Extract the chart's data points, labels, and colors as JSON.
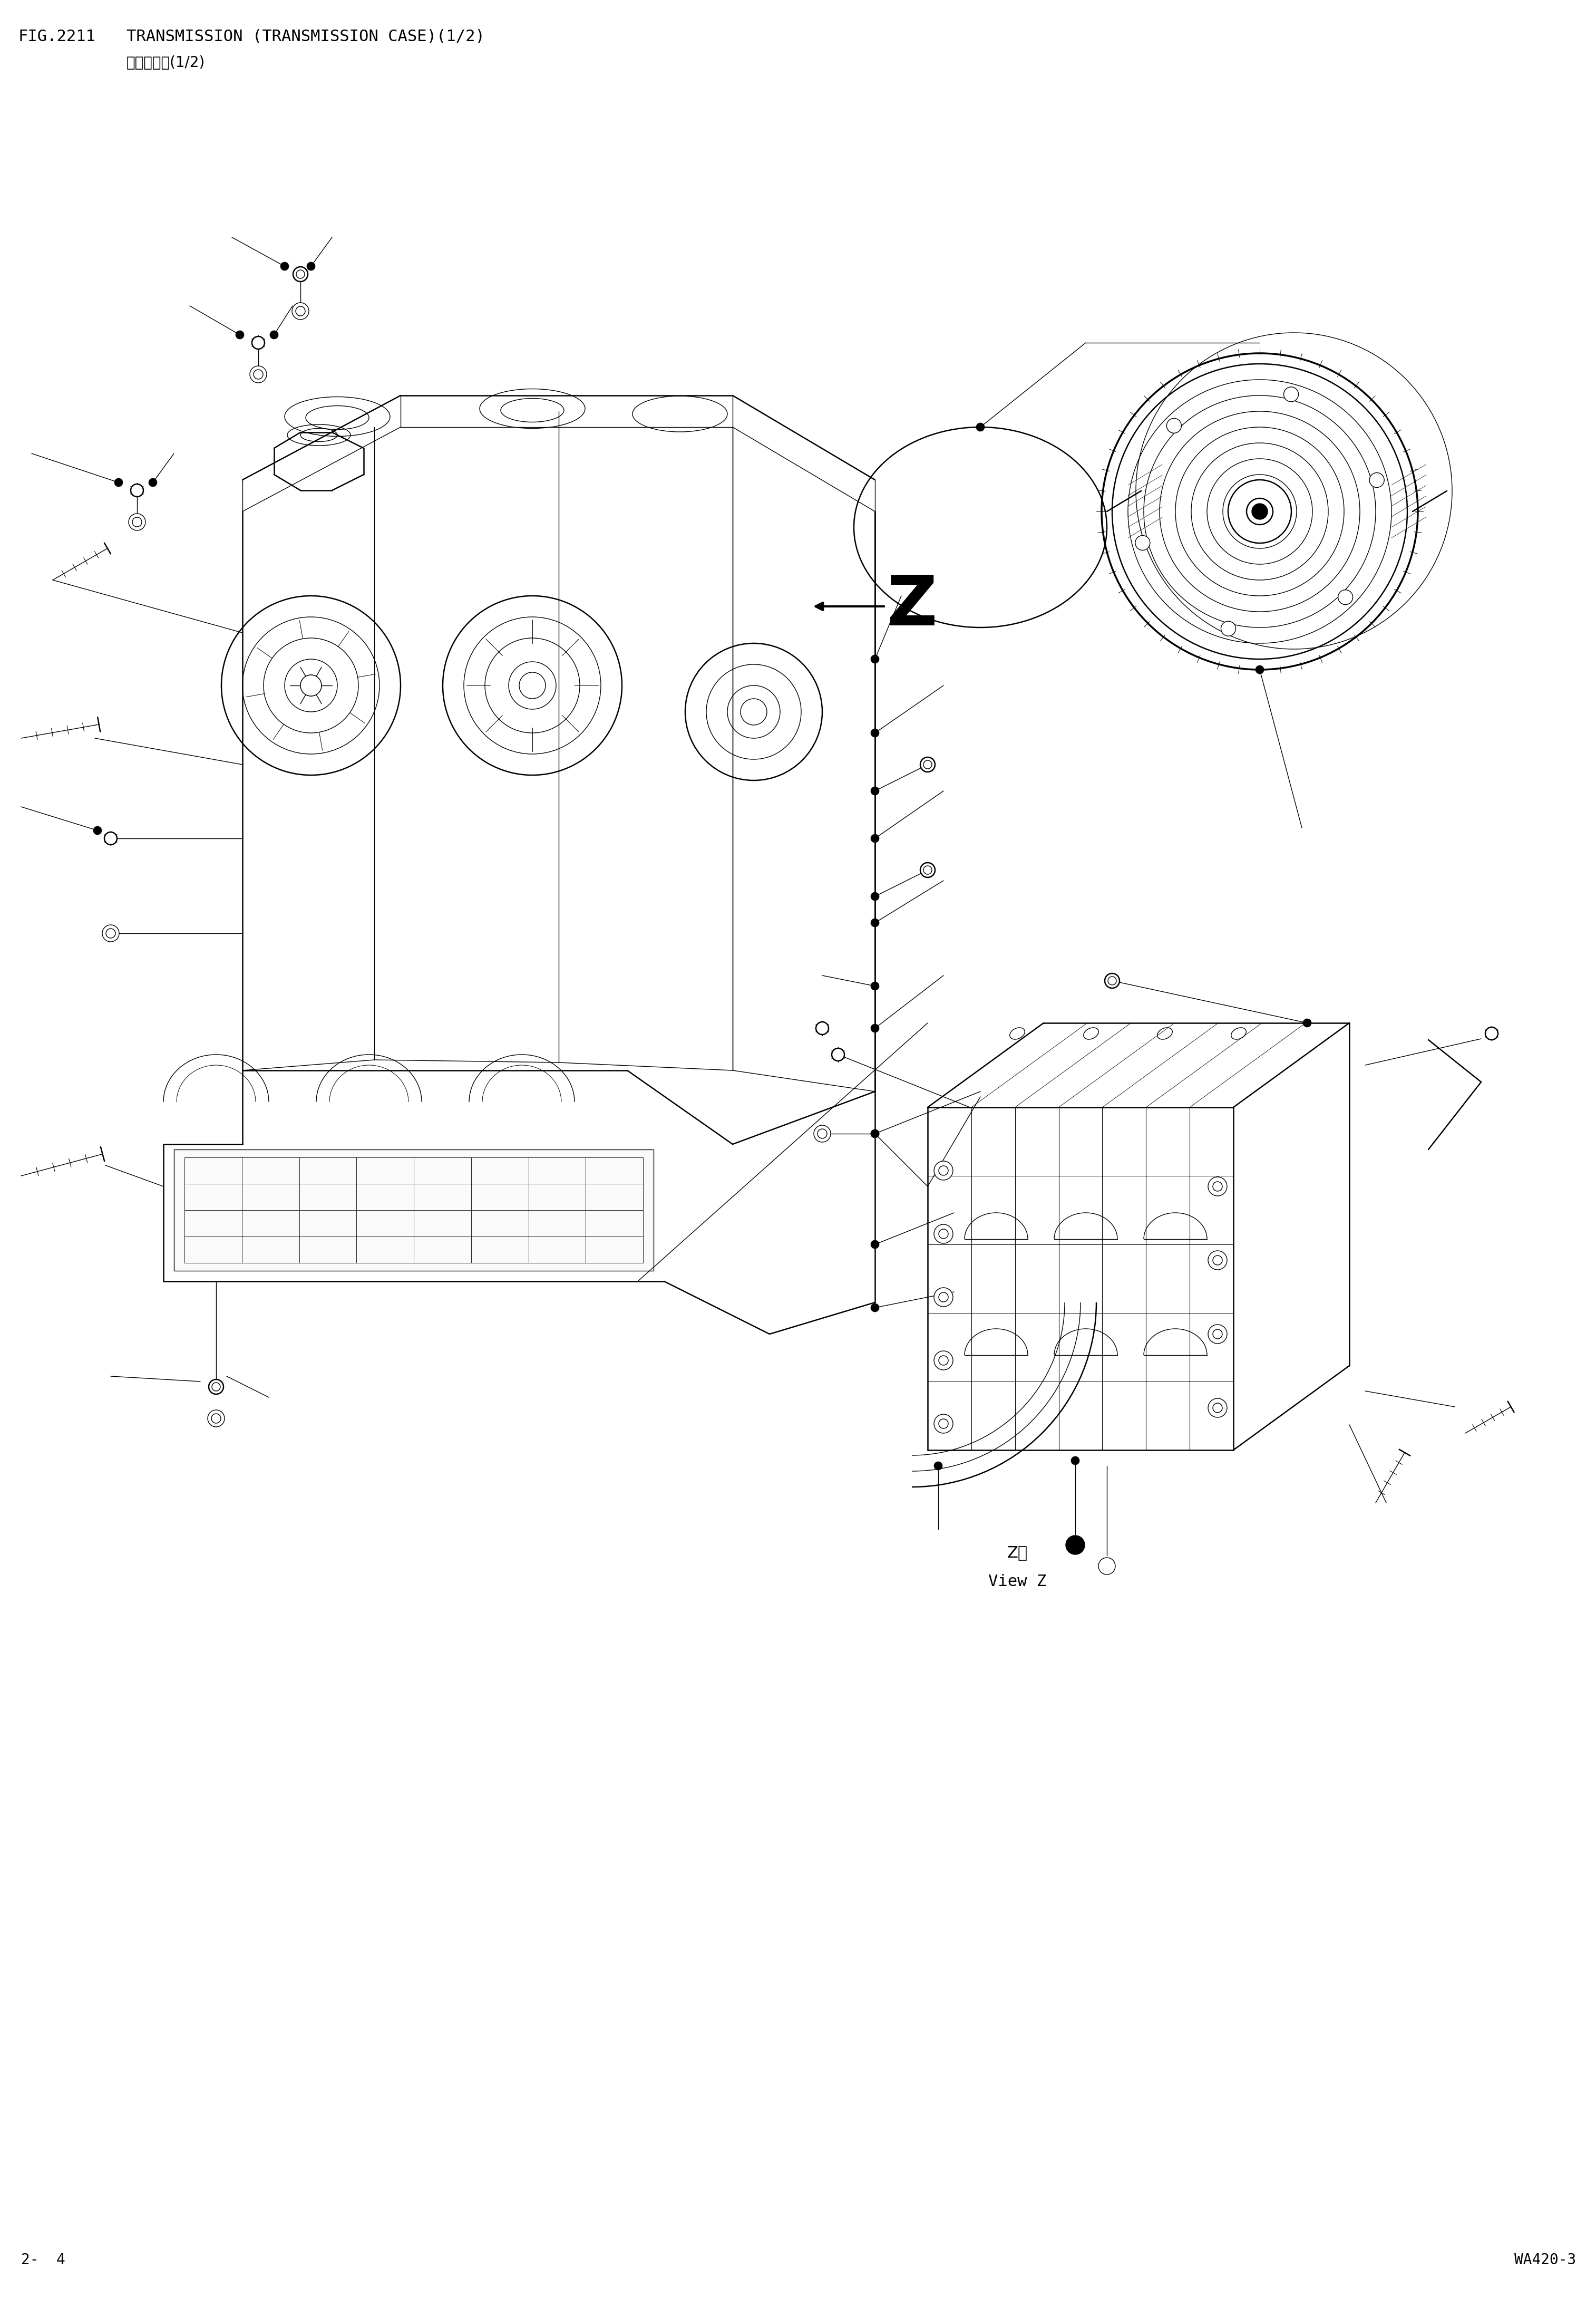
{
  "fig_number": "FIG.2211",
  "title_en": "TRANSMISSION (TRANSMISSION CASE)(1/2)",
  "title_cn": "変速筱壳体(1/2)",
  "page_left": "2-  4",
  "page_right": "WA420-3",
  "view_label_cn": "Z视",
  "view_label_en": "View Z",
  "bg": "#ffffff",
  "lc": "#000000",
  "header_fig_fs": 22,
  "header_title_fs": 22,
  "header_cn_fs": 20,
  "page_fs": 20,
  "lw_main": 1.8,
  "lw_thin": 1.0,
  "lw_thick": 2.5,
  "lw_xthick": 3.5
}
